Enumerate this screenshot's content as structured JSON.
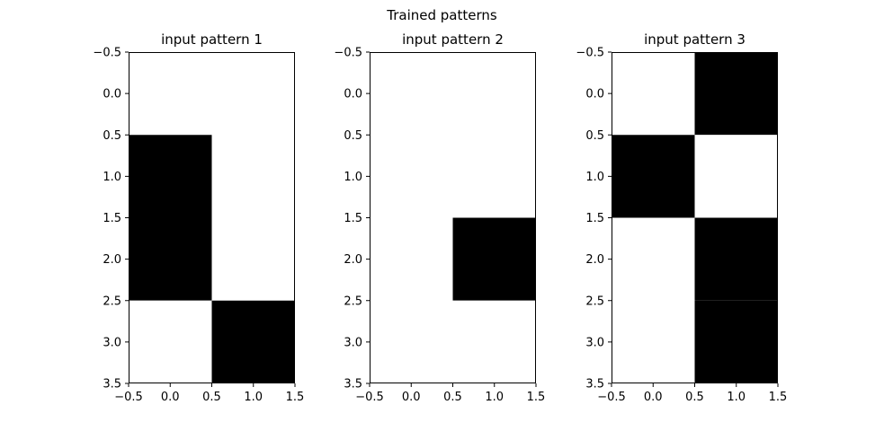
{
  "figure": {
    "suptitle": "Trained patterns"
  },
  "colors": {
    "on": "#000000",
    "off": "#ffffff",
    "frame": "#000000"
  },
  "chart_data": [
    {
      "type": "heatmap",
      "title": "input pattern 1",
      "xlim": [
        -0.5,
        1.5
      ],
      "ylim": [
        3.5,
        -0.5
      ],
      "xticks": [
        "−0.5",
        "0.0",
        "0.5",
        "1.0",
        "1.5"
      ],
      "yticks": [
        "−0.5",
        "0.0",
        "0.5",
        "1.0",
        "1.5",
        "2.0",
        "2.5",
        "3.0",
        "3.5"
      ],
      "cmap": "binary",
      "values": [
        [
          0,
          0
        ],
        [
          1,
          0
        ],
        [
          1,
          0
        ],
        [
          0,
          1
        ]
      ]
    },
    {
      "type": "heatmap",
      "title": "input pattern 2",
      "xlim": [
        -0.5,
        1.5
      ],
      "ylim": [
        3.5,
        -0.5
      ],
      "xticks": [
        "−0.5",
        "0.0",
        "0.5",
        "1.0",
        "1.5"
      ],
      "yticks": [
        "−0.5",
        "0.0",
        "0.5",
        "1.0",
        "1.5",
        "2.0",
        "2.5",
        "3.0",
        "3.5"
      ],
      "cmap": "binary",
      "values": [
        [
          0,
          0
        ],
        [
          0,
          0
        ],
        [
          0,
          1
        ],
        [
          0,
          0
        ]
      ]
    },
    {
      "type": "heatmap",
      "title": "input pattern 3",
      "xlim": [
        -0.5,
        1.5
      ],
      "ylim": [
        3.5,
        -0.5
      ],
      "xticks": [
        "−0.5",
        "0.0",
        "0.5",
        "1.0",
        "1.5"
      ],
      "yticks": [
        "−0.5",
        "0.0",
        "0.5",
        "1.0",
        "1.5",
        "2.0",
        "2.5",
        "3.0",
        "3.5"
      ],
      "cmap": "binary",
      "values": [
        [
          0,
          1
        ],
        [
          1,
          0
        ],
        [
          0,
          1
        ],
        [
          0,
          1
        ]
      ]
    }
  ]
}
